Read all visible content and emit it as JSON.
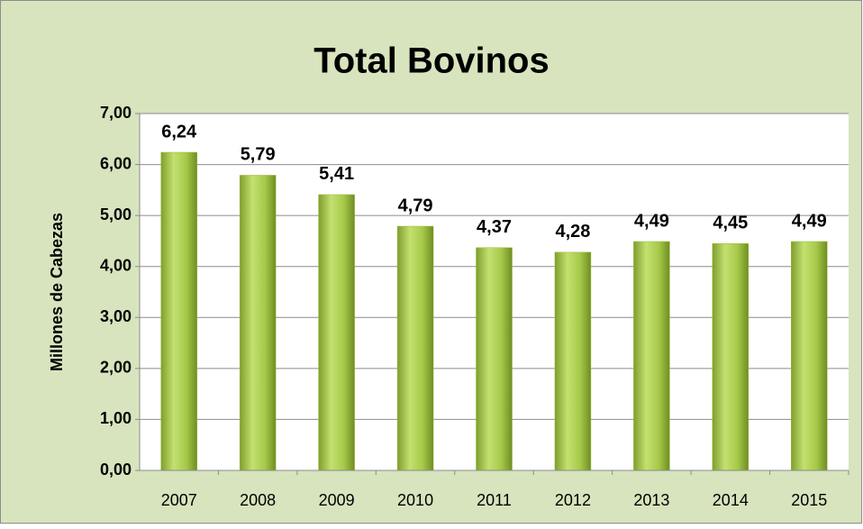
{
  "chart_data": {
    "type": "bar",
    "title": "Total Bovinos",
    "y_label": "Millones de Cabezas",
    "categories": [
      "2007",
      "2008",
      "2009",
      "2010",
      "2011",
      "2012",
      "2013",
      "2014",
      "2015"
    ],
    "values": [
      6.24,
      5.79,
      5.41,
      4.79,
      4.37,
      4.28,
      4.49,
      4.45,
      4.49
    ],
    "value_labels": [
      "6,24",
      "5,79",
      "5,41",
      "4,79",
      "4,37",
      "4,28",
      "4,49",
      "4,45",
      "4,49"
    ],
    "color": "#9bbb3b",
    "ylim": [
      0,
      7
    ],
    "yticks": [
      {
        "value": 0,
        "label": "0,00"
      },
      {
        "value": 1,
        "label": "1,00"
      },
      {
        "value": 2,
        "label": "2,00"
      },
      {
        "value": 3,
        "label": "3,00"
      },
      {
        "value": 4,
        "label": "4,00"
      },
      {
        "value": 5,
        "label": "5,00"
      },
      {
        "value": 6,
        "label": "6,00"
      },
      {
        "value": 7,
        "label": "7,00"
      }
    ],
    "grid": true
  }
}
